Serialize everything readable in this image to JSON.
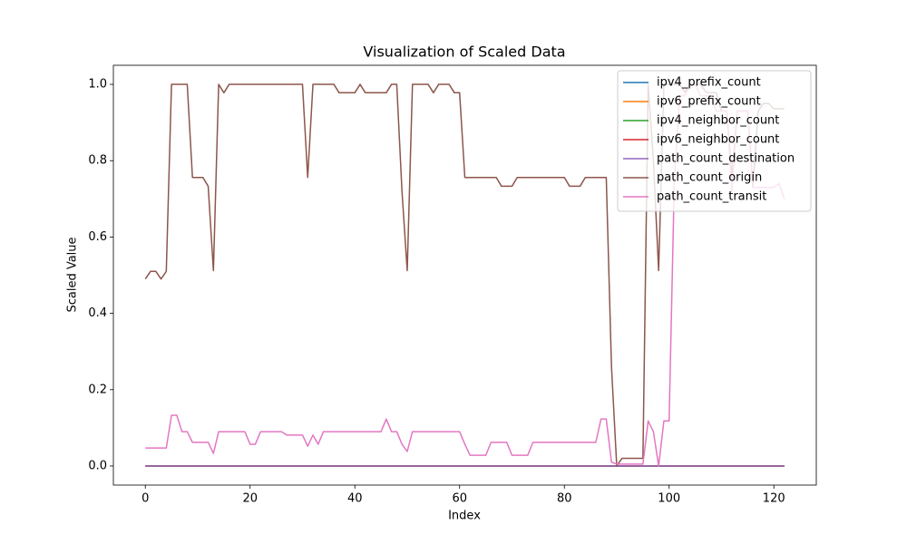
{
  "chart_data": {
    "type": "line",
    "title": "Visualization of Scaled Data",
    "xlabel": "Index",
    "ylabel": "Scaled Value",
    "xlim": [
      -6.1,
      128.1
    ],
    "ylim": [
      -0.05,
      1.05
    ],
    "xticks": [
      0,
      20,
      40,
      60,
      80,
      100,
      120
    ],
    "yticks": [
      {
        "value": 0,
        "label": "0.0"
      },
      0.2,
      0.4,
      0.6,
      0.8,
      {
        "value": 1,
        "label": "1.0"
      }
    ],
    "legend": "upper right",
    "x": [
      0,
      1,
      2,
      3,
      4,
      5,
      6,
      7,
      8,
      9,
      10,
      11,
      12,
      13,
      14,
      15,
      16,
      17,
      18,
      19,
      20,
      21,
      22,
      23,
      24,
      25,
      26,
      27,
      28,
      29,
      30,
      31,
      32,
      33,
      34,
      35,
      36,
      37,
      38,
      39,
      40,
      41,
      42,
      43,
      44,
      45,
      46,
      47,
      48,
      49,
      50,
      51,
      52,
      53,
      54,
      55,
      56,
      57,
      58,
      59,
      60,
      61,
      62,
      63,
      64,
      65,
      66,
      67,
      68,
      69,
      70,
      71,
      72,
      73,
      74,
      75,
      76,
      77,
      78,
      79,
      80,
      81,
      82,
      83,
      84,
      85,
      86,
      87,
      88,
      89,
      90,
      91,
      92,
      93,
      94,
      95,
      96,
      97,
      98,
      99,
      100,
      101,
      102,
      103,
      104,
      105,
      106,
      107,
      108,
      109,
      110,
      111,
      112,
      113,
      114,
      115,
      116,
      117,
      118,
      119,
      120,
      121,
      122
    ],
    "series": [
      {
        "name": "ipv4_prefix_count",
        "color": "#1f77b4",
        "values": [
          0,
          0,
          0,
          0,
          0,
          0,
          0,
          0,
          0,
          0,
          0,
          0,
          0,
          0,
          0,
          0,
          0,
          0,
          0,
          0,
          0,
          0,
          0,
          0,
          0,
          0,
          0,
          0,
          0,
          0,
          0,
          0,
          0,
          0,
          0,
          0,
          0,
          0,
          0,
          0,
          0,
          0,
          0,
          0,
          0,
          0,
          0,
          0,
          0,
          0,
          0,
          0,
          0,
          0,
          0,
          0,
          0,
          0,
          0,
          0,
          0,
          0,
          0,
          0,
          0,
          0,
          0,
          0,
          0,
          0,
          0,
          0,
          0,
          0,
          0,
          0,
          0,
          0,
          0,
          0,
          0,
          0,
          0,
          0,
          0,
          0,
          0,
          0,
          0,
          0,
          0,
          0,
          0,
          0,
          0,
          0,
          0,
          0,
          0,
          0,
          0,
          0,
          0,
          0,
          0,
          0,
          0,
          0,
          0,
          0,
          0,
          0,
          0,
          0,
          0,
          0,
          0,
          0,
          0,
          0,
          0,
          0,
          0
        ]
      },
      {
        "name": "ipv6_prefix_count",
        "color": "#ff7f0e",
        "values": [
          0,
          0,
          0,
          0,
          0,
          0,
          0,
          0,
          0,
          0,
          0,
          0,
          0,
          0,
          0,
          0,
          0,
          0,
          0,
          0,
          0,
          0,
          0,
          0,
          0,
          0,
          0,
          0,
          0,
          0,
          0,
          0,
          0,
          0,
          0,
          0,
          0,
          0,
          0,
          0,
          0,
          0,
          0,
          0,
          0,
          0,
          0,
          0,
          0,
          0,
          0,
          0,
          0,
          0,
          0,
          0,
          0,
          0,
          0,
          0,
          0,
          0,
          0,
          0,
          0,
          0,
          0,
          0,
          0,
          0,
          0,
          0,
          0,
          0,
          0,
          0,
          0,
          0,
          0,
          0,
          0,
          0,
          0,
          0,
          0,
          0,
          0,
          0,
          0,
          0,
          0,
          0,
          0,
          0,
          0,
          0,
          0,
          0,
          0,
          0,
          0,
          0,
          0,
          0,
          0,
          0,
          0,
          0,
          0,
          0,
          0,
          0,
          0,
          0,
          0,
          0,
          0,
          0,
          0,
          0,
          0,
          0,
          0
        ]
      },
      {
        "name": "ipv4_neighbor_count",
        "color": "#2ca02c",
        "values": [
          0,
          0,
          0,
          0,
          0,
          0,
          0,
          0,
          0,
          0,
          0,
          0,
          0,
          0,
          0,
          0,
          0,
          0,
          0,
          0,
          0,
          0,
          0,
          0,
          0,
          0,
          0,
          0,
          0,
          0,
          0,
          0,
          0,
          0,
          0,
          0,
          0,
          0,
          0,
          0,
          0,
          0,
          0,
          0,
          0,
          0,
          0,
          0,
          0,
          0,
          0,
          0,
          0,
          0,
          0,
          0,
          0,
          0,
          0,
          0,
          0,
          0,
          0,
          0,
          0,
          0,
          0,
          0,
          0,
          0,
          0,
          0,
          0,
          0,
          0,
          0,
          0,
          0,
          0,
          0,
          0,
          0,
          0,
          0,
          0,
          0,
          0,
          0,
          0,
          0,
          0,
          0,
          0,
          0,
          0,
          0,
          0,
          0,
          0,
          0,
          0,
          0,
          0,
          0,
          0,
          0,
          0,
          0,
          0,
          0,
          0,
          0,
          0,
          0,
          0,
          0,
          0,
          0,
          0,
          0,
          0,
          0,
          0
        ]
      },
      {
        "name": "ipv6_neighbor_count",
        "color": "#d62728",
        "values": [
          0,
          0,
          0,
          0,
          0,
          0,
          0,
          0,
          0,
          0,
          0,
          0,
          0,
          0,
          0,
          0,
          0,
          0,
          0,
          0,
          0,
          0,
          0,
          0,
          0,
          0,
          0,
          0,
          0,
          0,
          0,
          0,
          0,
          0,
          0,
          0,
          0,
          0,
          0,
          0,
          0,
          0,
          0,
          0,
          0,
          0,
          0,
          0,
          0,
          0,
          0,
          0,
          0,
          0,
          0,
          0,
          0,
          0,
          0,
          0,
          0,
          0,
          0,
          0,
          0,
          0,
          0,
          0,
          0,
          0,
          0,
          0,
          0,
          0,
          0,
          0,
          0,
          0,
          0,
          0,
          0,
          0,
          0,
          0,
          0,
          0,
          0,
          0,
          0,
          0,
          0,
          0,
          0,
          0,
          0,
          0,
          0,
          0,
          0,
          0,
          0,
          0,
          0,
          0,
          0,
          0,
          0,
          0,
          0,
          0,
          0,
          0,
          0,
          0,
          0,
          0,
          0,
          0,
          0,
          0,
          0,
          0,
          0
        ]
      },
      {
        "name": "path_count_destination",
        "color": "#9467bd",
        "values": [
          0,
          0,
          0,
          0,
          0,
          0,
          0,
          0,
          0,
          0,
          0,
          0,
          0,
          0,
          0,
          0,
          0,
          0,
          0,
          0,
          0,
          0,
          0,
          0,
          0,
          0,
          0,
          0,
          0,
          0,
          0,
          0,
          0,
          0,
          0,
          0,
          0,
          0,
          0,
          0,
          0,
          0,
          0,
          0,
          0,
          0,
          0,
          0,
          0,
          0,
          0,
          0,
          0,
          0,
          0,
          0,
          0,
          0,
          0,
          0,
          0,
          0,
          0,
          0,
          0,
          0,
          0,
          0,
          0,
          0,
          0,
          0,
          0,
          0,
          0,
          0,
          0,
          0,
          0,
          0,
          0,
          0,
          0,
          0,
          0,
          0,
          0,
          0,
          0,
          0,
          0,
          0,
          0,
          0,
          0,
          0,
          0,
          0,
          0,
          0,
          0,
          0,
          0,
          0,
          0,
          0,
          0,
          0,
          0,
          0,
          0,
          0,
          0,
          0,
          0,
          0,
          0,
          0,
          0,
          0,
          0,
          0,
          0
        ]
      },
      {
        "name": "path_count_origin",
        "color": "#8c564b",
        "values": [
          0.49,
          0.51,
          0.51,
          0.49,
          0.51,
          1,
          1,
          1,
          1,
          0.756,
          0.756,
          0.756,
          0.733,
          0.512,
          1,
          0.978,
          1,
          1,
          1,
          1,
          1,
          1,
          1,
          1,
          1,
          1,
          1,
          1,
          1,
          1,
          1,
          0.756,
          1,
          1,
          1,
          1,
          1,
          0.978,
          0.978,
          0.978,
          0.978,
          1,
          0.978,
          0.978,
          0.978,
          0.978,
          0.978,
          1,
          1,
          0.72,
          0.512,
          1,
          1,
          1,
          1,
          0.978,
          1,
          1,
          1,
          0.978,
          0.978,
          0.756,
          0.756,
          0.756,
          0.756,
          0.756,
          0.756,
          0.756,
          0.733,
          0.733,
          0.733,
          0.756,
          0.756,
          0.756,
          0.756,
          0.756,
          0.756,
          0.756,
          0.756,
          0.756,
          0.756,
          0.733,
          0.733,
          0.733,
          0.756,
          0.756,
          0.756,
          0.756,
          0.756,
          0.26,
          0,
          0.02,
          0.02,
          0.02,
          0.02,
          0.02,
          1,
          0.8,
          0.512,
          1,
          1,
          1,
          1,
          0.98,
          1,
          1,
          1,
          0.98,
          0.978,
          0.978,
          0.93,
          0.93,
          0.756,
          0.93,
          0.93,
          0.93,
          0.73,
          0.93,
          0.95,
          0.95,
          0.936,
          0.936,
          0.936
        ]
      },
      {
        "name": "path_count_transit",
        "color": "#e377c2",
        "values": [
          0.047,
          0.047,
          0.047,
          0.047,
          0.047,
          0.133,
          0.133,
          0.09,
          0.09,
          0.062,
          0.062,
          0.062,
          0.062,
          0.033,
          0.09,
          0.09,
          0.09,
          0.09,
          0.09,
          0.09,
          0.057,
          0.057,
          0.09,
          0.09,
          0.09,
          0.09,
          0.09,
          0.081,
          0.081,
          0.081,
          0.081,
          0.052,
          0.081,
          0.057,
          0.09,
          0.09,
          0.09,
          0.09,
          0.09,
          0.09,
          0.09,
          0.09,
          0.09,
          0.09,
          0.09,
          0.09,
          0.123,
          0.09,
          0.09,
          0.057,
          0.038,
          0.09,
          0.09,
          0.09,
          0.09,
          0.09,
          0.09,
          0.09,
          0.09,
          0.09,
          0.09,
          0.057,
          0.028,
          0.028,
          0.028,
          0.028,
          0.062,
          0.062,
          0.062,
          0.062,
          0.028,
          0.028,
          0.028,
          0.028,
          0.062,
          0.062,
          0.062,
          0.062,
          0.062,
          0.062,
          0.062,
          0.062,
          0.062,
          0.062,
          0.062,
          0.062,
          0.062,
          0.123,
          0.123,
          0.01,
          0.005,
          0.005,
          0.005,
          0.005,
          0.005,
          0.005,
          0.118,
          0.09,
          0,
          0.118,
          0.118,
          0.75,
          0.97,
          0.97,
          1,
          1,
          0.97,
          0.97,
          0.97,
          0.93,
          0.93,
          0.93,
          0.72,
          0.93,
          0.93,
          0.93,
          0.73,
          0.73,
          0.73,
          0.73,
          0.73,
          0.74,
          0.7
        ]
      }
    ]
  }
}
